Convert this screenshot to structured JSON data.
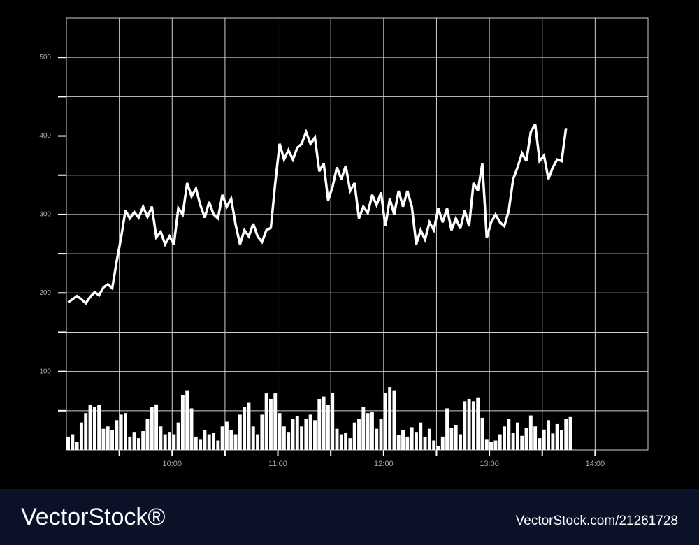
{
  "chart_data": {
    "type": "line",
    "x": [
      541,
      543.5,
      546,
      548.5,
      551,
      553.5,
      556,
      558.5,
      561,
      563.5,
      566,
      568.5,
      571,
      573.5,
      576,
      578.5,
      581,
      583.5,
      586,
      588.5,
      591,
      593.5,
      596,
      598.5,
      601,
      603.5,
      606,
      608.5,
      611,
      613.5,
      616,
      618.5,
      621,
      623.5,
      626,
      628.5,
      631,
      633.5,
      636,
      638.5,
      641,
      643.5,
      646,
      648.5,
      651,
      653.5,
      656,
      658.5,
      661,
      663.5,
      666,
      668.5,
      671,
      673.5,
      676,
      678.5,
      681,
      683.5,
      686,
      688.5,
      691,
      693.5,
      696,
      698.5,
      701,
      703.5,
      706,
      708.5,
      711,
      713.5,
      716,
      718.5,
      721,
      723.5,
      726,
      728.5,
      731,
      733.5,
      736,
      738.5,
      741,
      743.5,
      746,
      748.5,
      751,
      753.5,
      756,
      758.5,
      761,
      763.5,
      766,
      768.5,
      771,
      773.5,
      776,
      778.5,
      781,
      783.5,
      786,
      788.5,
      791,
      793.5,
      796,
      798.5,
      801,
      803.5,
      806,
      808.5,
      811,
      813.5,
      816,
      818.5,
      821,
      823.5,
      826
    ],
    "series": [
      {
        "type": "line",
        "color": "#ffffff",
        "values": [
          188,
          192,
          196,
          192,
          187,
          195,
          201,
          197,
          207,
          211,
          206,
          240,
          270,
          305,
          295,
          303,
          296,
          310,
          297,
          310,
          271,
          278,
          262,
          272,
          262,
          308,
          300,
          340,
          323,
          333,
          312,
          296,
          316,
          300,
          295,
          325,
          310,
          320,
          287,
          262,
          280,
          272,
          288,
          272,
          265,
          280,
          283,
          340,
          390,
          370,
          382,
          370,
          385,
          390,
          405,
          390,
          398,
          355,
          365,
          318,
          335,
          360,
          345,
          362,
          330,
          340,
          295,
          310,
          302,
          325,
          312,
          328,
          285,
          320,
          300,
          330,
          310,
          330,
          310,
          262,
          280,
          268,
          290,
          280,
          308,
          290,
          308,
          280,
          295,
          282,
          305,
          285,
          340,
          330,
          365,
          270,
          290,
          300,
          290,
          285,
          305,
          345,
          360,
          378,
          368,
          405,
          415,
          368,
          375,
          345,
          360,
          370,
          368,
          410,
          null
        ]
      },
      {
        "type": "bar",
        "color": "#ffffff",
        "values": [
          17,
          20,
          10,
          35,
          47,
          57,
          55,
          57,
          27,
          30,
          25,
          38,
          45,
          47,
          17,
          23,
          15,
          24,
          40,
          55,
          58,
          30,
          20,
          23,
          20,
          35,
          70,
          76,
          53,
          17,
          13,
          25,
          20,
          22,
          12,
          30,
          36,
          25,
          20,
          45,
          55,
          60,
          30,
          20,
          45,
          72,
          65,
          72,
          47,
          30,
          23,
          40,
          43,
          30,
          40,
          45,
          38,
          65,
          68,
          57,
          73,
          27,
          20,
          22,
          15,
          35,
          40,
          55,
          47,
          48,
          27,
          40,
          73,
          80,
          76,
          19,
          25,
          17,
          29,
          23,
          35,
          17,
          27,
          12,
          5,
          17,
          53,
          28,
          32,
          20,
          62,
          65,
          62,
          67,
          41,
          13,
          10,
          12,
          20,
          30,
          40,
          22,
          35,
          18,
          28,
          44,
          30,
          15,
          26,
          38,
          21,
          33,
          25,
          40,
          42
        ]
      }
    ],
    "xlim": [
      540,
      870
    ],
    "xticks": [
      {
        "value": 600,
        "label": "10:00"
      },
      {
        "value": 660,
        "label": "11:00"
      },
      {
        "value": 720,
        "label": "12:00"
      },
      {
        "value": 780,
        "label": "13:00"
      },
      {
        "value": 840,
        "label": "14:00"
      }
    ],
    "xticks_minor": [
      570,
      630,
      690,
      750,
      810
    ],
    "ylim": [
      0,
      550
    ],
    "yticks": [
      100,
      200,
      300,
      400,
      500
    ],
    "yticks_minor": [
      50,
      150,
      250,
      350,
      450
    ],
    "grid": true
  },
  "footer": {
    "brand": "VectorStock®",
    "url": "VectorStock.com/21261728"
  }
}
